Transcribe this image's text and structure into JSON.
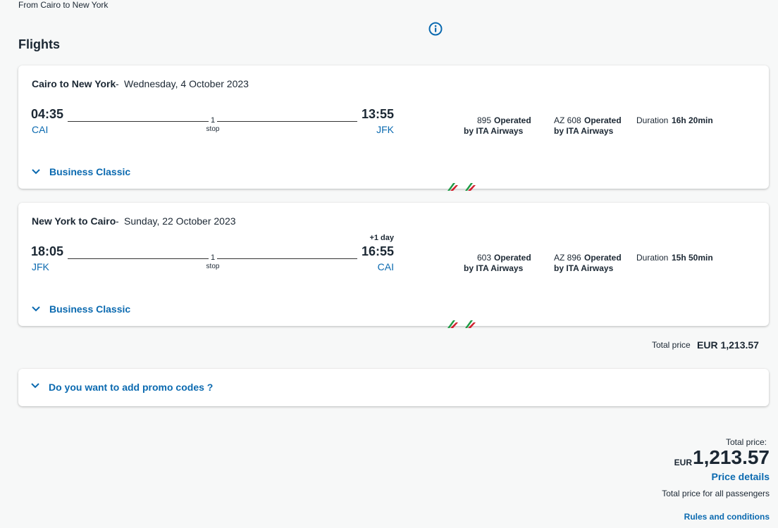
{
  "header": {
    "breadcrumb": "From Cairo to New York",
    "title": "Flights"
  },
  "flights": [
    {
      "route": "Cairo to New York",
      "separator": "-",
      "date": "Wednesday, 4 October 2023",
      "departure": {
        "time": "04:35",
        "airport": "CAI"
      },
      "stops": {
        "count": "1",
        "label": "stop"
      },
      "arrival": {
        "time": "13:55",
        "airport": "JFK"
      },
      "segments": [
        {
          "flight": "895",
          "operated": "Operated",
          "carrier": "by ITA Airways"
        },
        {
          "flight": "AZ 608",
          "operated": "Operated",
          "carrier": "by ITA Airways"
        }
      ],
      "duration": {
        "label": "Duration",
        "value": "16h 20min"
      },
      "cabin": "Business Classic"
    },
    {
      "route": "New York to Cairo",
      "separator": "-",
      "date": "Sunday, 22 October 2023",
      "departure": {
        "time": "18:05",
        "airport": "JFK"
      },
      "stops": {
        "count": "1",
        "label": "stop"
      },
      "arrival": {
        "time": "16:55",
        "airport": "CAI",
        "day_offset": "+1 day"
      },
      "segments": [
        {
          "flight": "603",
          "operated": "Operated",
          "carrier": "by ITA Airways"
        },
        {
          "flight": "AZ 896",
          "operated": "Operated",
          "carrier": "by ITA Airways"
        }
      ],
      "duration": {
        "label": "Duration",
        "value": "15h 50min"
      },
      "cabin": "Business Classic"
    }
  ],
  "total": {
    "label": "Total price",
    "amount": "EUR 1,213.57"
  },
  "promo": "Do you want to add promo codes ?",
  "summary": {
    "label": "Total price:",
    "currency": "EUR",
    "amount": "1,213.57",
    "details": "Price details",
    "note": "Total price for all passengers",
    "rules": "Rules and conditions"
  }
}
